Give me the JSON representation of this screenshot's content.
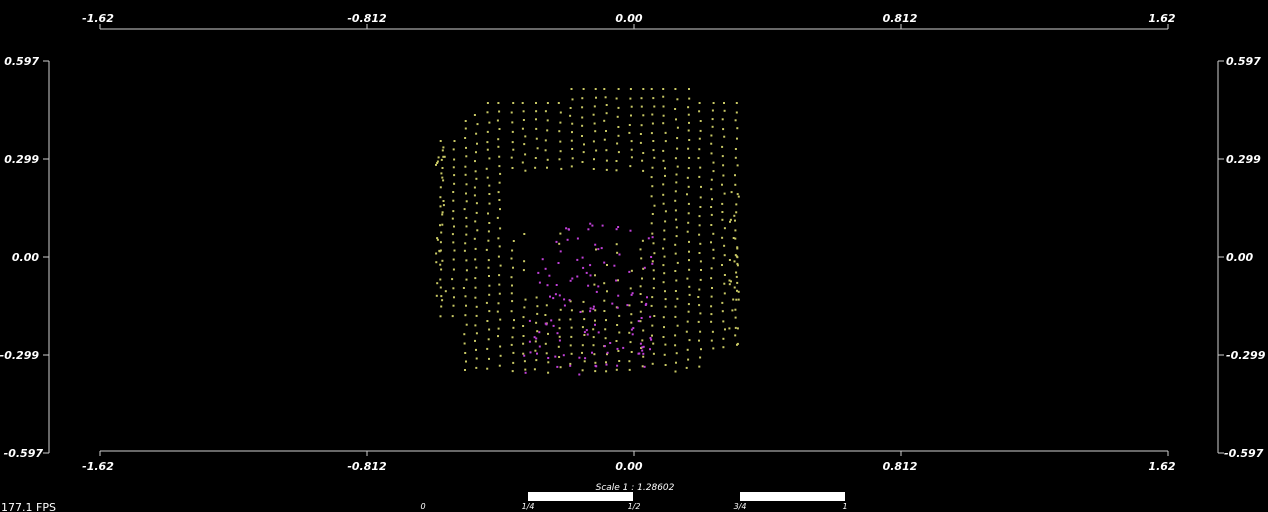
{
  "view": {
    "fps_text": "177.1 FPS",
    "scale_text": "Scale 1 : 1.28602",
    "scalebar_labels": [
      "0",
      "1/4",
      "1/2",
      "3/4",
      "1"
    ],
    "background": "#000000",
    "axis_color": "#cfcfcf",
    "label_color": "#ffffff"
  },
  "axes": {
    "x_range": [
      -1.62,
      1.62
    ],
    "y_range": [
      -0.597,
      0.597
    ],
    "x_ticks": [
      "-1.62",
      "-0.812",
      "0.00",
      "0.812",
      "1.62"
    ],
    "y_ticks": [
      "0.597",
      "0.299",
      "0.00",
      "-0.299",
      "-0.597"
    ]
  },
  "point_cloud": {
    "series": [
      {
        "name": "",
        "color": "#c8c864"
      },
      {
        "name": "",
        "color": "#c040d8"
      }
    ]
  }
}
